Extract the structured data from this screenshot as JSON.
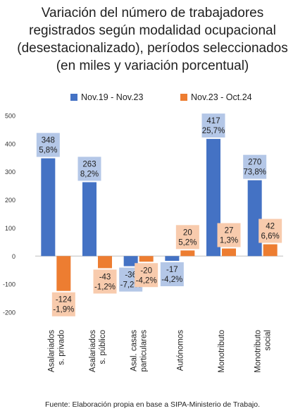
{
  "title_lines": [
    "Variación del número de trabajadores",
    "registrados según modalidad ocupacional",
    "(desestacionalizado), períodos seleccionados",
    "(en miles y variación porcentual)"
  ],
  "source": "Fuente: Elaboración propia en base a SIPA-Ministerio de Trabajo.",
  "colors": {
    "series1": "#4472C4",
    "series2": "#ED7D31",
    "label1_bg": "#B4C7E7",
    "label2_bg": "#F8CBAD"
  },
  "chart_data": {
    "type": "bar",
    "title": "Variación del número de trabajadores registrados según modalidad ocupacional (desestacionalizado), períodos seleccionados (en miles y variación porcentual)",
    "xlabel": "",
    "ylabel": "",
    "ylim": [
      -200,
      500
    ],
    "yticks": [
      -200,
      -100,
      0,
      100,
      200,
      300,
      400,
      500
    ],
    "grid": false,
    "legend_position": "top",
    "categories": [
      [
        "Asalariados",
        "s. privado"
      ],
      [
        "Asalariados",
        "s. público"
      ],
      [
        "Asal. casas",
        "particulares"
      ],
      [
        "Autónomos"
      ],
      [
        "Monotributo"
      ],
      [
        "Monotributo",
        "social"
      ]
    ],
    "series": [
      {
        "name": "Nov.19 - Nov.23",
        "values": [
          348,
          263,
          -36,
          -17,
          417,
          270
        ],
        "labels": [
          [
            "348",
            "5,8%"
          ],
          [
            "263",
            "8,2%"
          ],
          [
            "-36",
            "-7,2%"
          ],
          [
            "-17",
            "-4,2%"
          ],
          [
            "417",
            "25,7%"
          ],
          [
            "270",
            "73,8%"
          ]
        ]
      },
      {
        "name": "Nov.23 - Oct.24",
        "values": [
          -124,
          -43,
          -20,
          20,
          27,
          42
        ],
        "labels": [
          [
            "-124",
            "-1,9%"
          ],
          [
            "-43",
            "-1,2%"
          ],
          [
            "-20",
            "-4,2%"
          ],
          [
            "20",
            "5,2%"
          ],
          [
            "27",
            "1,3%"
          ],
          [
            "42",
            "6,6%"
          ]
        ]
      }
    ]
  }
}
